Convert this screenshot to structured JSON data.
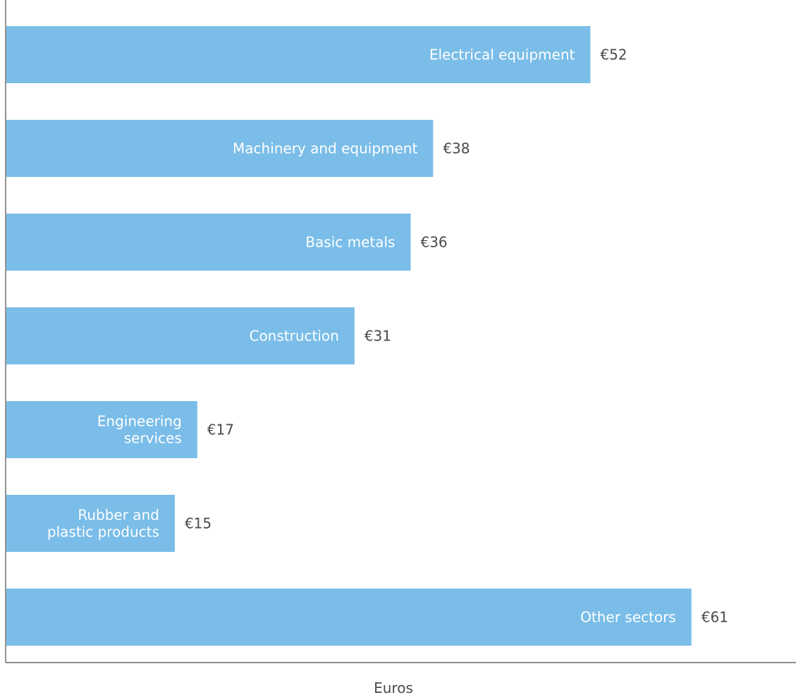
{
  "chart_data": {
    "type": "bar",
    "orientation": "horizontal",
    "categories": [
      "Electrical equipment",
      "Machinery and equipment",
      "Basic metals",
      "Construction",
      "Engineering services",
      "Rubber and plastic products",
      "Other sectors"
    ],
    "category_lines": [
      [
        "Electrical equipment"
      ],
      [
        "Machinery and equipment"
      ],
      [
        "Basic metals"
      ],
      [
        "Construction"
      ],
      [
        "Engineering",
        "services"
      ],
      [
        "Rubber and",
        "plastic products"
      ],
      [
        "Other sectors"
      ]
    ],
    "values": [
      52,
      38,
      36,
      31,
      17,
      15,
      61
    ],
    "value_labels": [
      "€52",
      "€38",
      "€36",
      "€31",
      "€17",
      "€15",
      "€61"
    ],
    "title": "",
    "xlabel": "Euros",
    "ylabel": "",
    "xlim": [
      0,
      70
    ],
    "grid": false,
    "legend": "none",
    "colors": {
      "bar": "#7abde8",
      "axis": "#4a4a4a",
      "label_inside": "#ffffff",
      "label_outside": "#4a4a4a"
    }
  }
}
